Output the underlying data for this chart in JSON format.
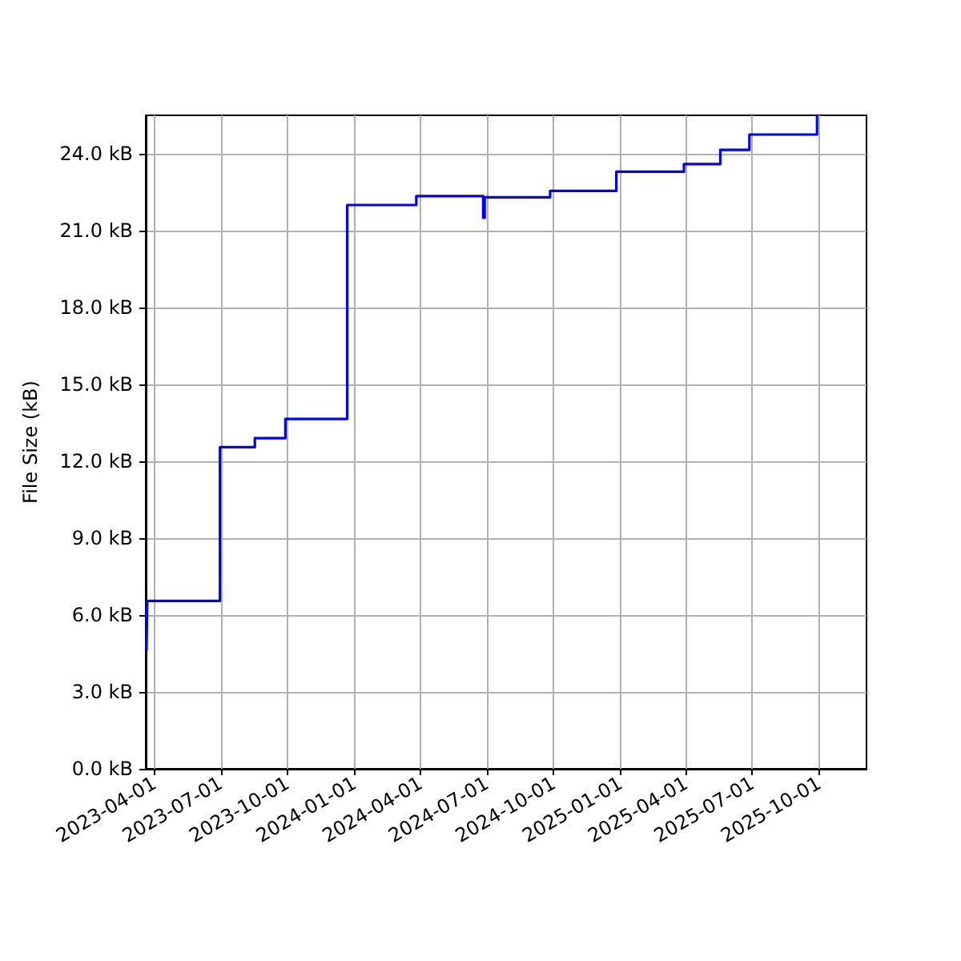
{
  "chart_data": {
    "type": "step",
    "ylabel": "File Size (kB)",
    "x": [
      "2023-03-21",
      "2023-03-22",
      "2023-06-30",
      "2023-08-17",
      "2023-09-28",
      "2023-12-22",
      "2024-03-26",
      "2024-06-26",
      "2024-06-28",
      "2024-09-26",
      "2024-12-26",
      "2025-03-29",
      "2025-05-18",
      "2025-06-27",
      "2025-09-28"
    ],
    "series": [
      {
        "color": "#0000ff",
        "values": [
          4.6,
          6.55,
          12.55,
          12.9,
          13.65,
          22.0,
          22.35,
          21.5,
          22.3,
          22.55,
          23.3,
          23.6,
          24.15,
          24.75,
          25.5
        ]
      }
    ],
    "xlim": [
      "2023-03-20",
      "2025-12-05"
    ],
    "xticks": [
      "2023-04-01",
      "2023-07-01",
      "2023-10-01",
      "2024-01-01",
      "2024-04-01",
      "2024-07-01",
      "2024-10-01",
      "2025-01-01",
      "2025-04-01",
      "2025-07-01",
      "2025-10-01"
    ],
    "ylim": [
      0,
      25.5
    ],
    "yticks": [
      {
        "value": 0,
        "label": "0.0 kB"
      },
      {
        "value": 3,
        "label": "3.0 kB"
      },
      {
        "value": 6,
        "label": "6.0 kB"
      },
      {
        "value": 9,
        "label": "9.0 kB"
      },
      {
        "value": 12,
        "label": "12.0 kB"
      },
      {
        "value": 15,
        "label": "15.0 kB"
      },
      {
        "value": 18,
        "label": "18.0 kB"
      },
      {
        "value": 21,
        "label": "21.0 kB"
      },
      {
        "value": 24,
        "label": "24.0 kB"
      }
    ],
    "grid": true,
    "marker": "none",
    "line_style": "solid"
  }
}
